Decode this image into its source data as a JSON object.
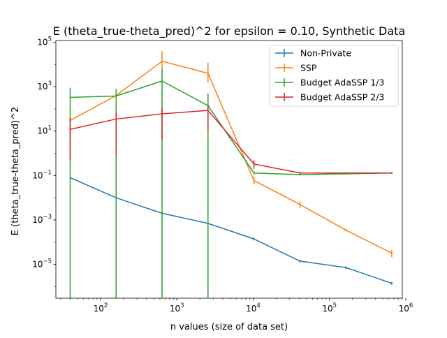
{
  "chart_data": {
    "type": "line",
    "title": "E (theta_true-theta_pred)^2 for epsilon = 0.10, Synthetic Data",
    "xlabel": "n values (size of data set)",
    "ylabel": "E (theta_true-theta_pred)^2",
    "x_scale": "log",
    "y_scale": "log",
    "xlim": [
      26,
      900000
    ],
    "ylim": [
      3e-07,
      120000.0
    ],
    "x_ticks": [
      {
        "value": 100,
        "base": "10",
        "exp": "2"
      },
      {
        "value": 1000,
        "base": "10",
        "exp": "3"
      },
      {
        "value": 10000,
        "base": "10",
        "exp": "4"
      },
      {
        "value": 100000,
        "base": "10",
        "exp": "5"
      },
      {
        "value": 1000000,
        "base": "10",
        "exp": "6"
      }
    ],
    "y_ticks": [
      {
        "value": 1e-05,
        "base": "10",
        "exp": "−5"
      },
      {
        "value": 0.001,
        "base": "10",
        "exp": "−3"
      },
      {
        "value": 0.1,
        "base": "10",
        "exp": "−1"
      },
      {
        "value": 10,
        "base": "10",
        "exp": "1"
      },
      {
        "value": 1000,
        "base": "10",
        "exp": "3"
      },
      {
        "value": 100000,
        "base": "10",
        "exp": "5"
      }
    ],
    "grid": false,
    "legend_position": "top-right",
    "x": [
      40,
      160,
      640,
      2560,
      10240,
      40960,
      163840,
      655360
    ],
    "series": [
      {
        "name": "Non-Private",
        "color": "#1f77b4",
        "values": [
          0.08,
          0.01,
          0.002,
          0.0007,
          0.00014,
          1.4e-05,
          7.2e-06,
          1.4e-06
        ],
        "err_low": [
          0.07,
          0.009,
          0.0018,
          0.00065,
          0.00012,
          1.2e-05,
          6.2e-06,
          1.2e-06
        ],
        "err_high": [
          0.09,
          0.011,
          0.0022,
          0.00075,
          0.00016,
          1.6e-05,
          8.2e-06,
          1.6e-06
        ]
      },
      {
        "name": "SSP",
        "color": "#ff7f0e",
        "values": [
          30,
          400,
          14000,
          4000,
          0.06,
          0.005,
          0.00035,
          3.2e-05
        ],
        "err_low": [
          25,
          330,
          5000,
          1500,
          0.04,
          0.0035,
          0.0003,
          2.1e-05
        ],
        "err_high": [
          40,
          480,
          40000,
          12000,
          0.08,
          0.0068,
          0.0004,
          4.5e-05
        ]
      },
      {
        "name": "Budget AdaSSP 1/3",
        "color": "#2ca02c",
        "values": [
          330,
          380,
          1800,
          140,
          0.13,
          0.11,
          0.12,
          0.13
        ],
        "err_low": [
          1e-07,
          1e-07,
          1e-07,
          1e-07,
          0.11,
          0.1,
          0.11,
          0.12
        ],
        "err_high": [
          900,
          800,
          6000,
          500,
          0.15,
          0.12,
          0.13,
          0.14
        ]
      },
      {
        "name": "Budget AdaSSP 2/3",
        "color": "#d62728",
        "values": [
          12,
          35,
          60,
          85,
          0.33,
          0.13,
          0.13,
          0.13
        ],
        "err_low": [
          0.5,
          0.8,
          4,
          10,
          0.2,
          0.12,
          0.12,
          0.12
        ],
        "err_high": [
          40,
          80,
          120,
          150,
          0.5,
          0.14,
          0.14,
          0.14
        ]
      }
    ]
  }
}
